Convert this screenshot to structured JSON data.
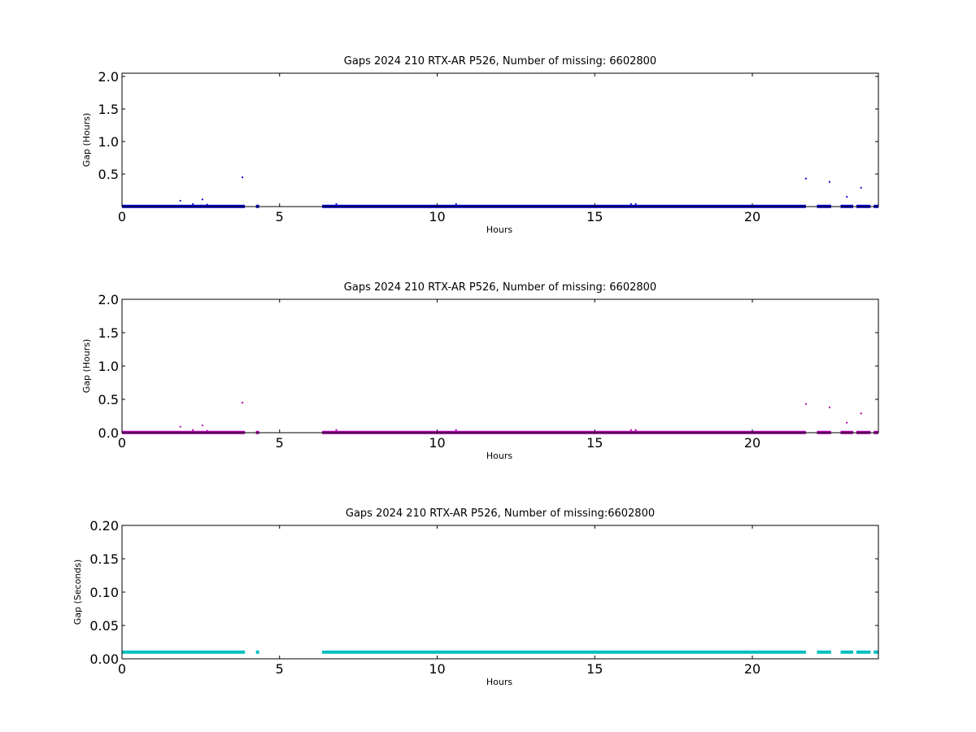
{
  "chart_data": [
    {
      "type": "scatter",
      "title": "Gaps 2024 210 RTX-AR  P526, Number of missing: 6602800",
      "xlabel": "Hours",
      "ylabel": "Gap (Hours)",
      "xlim": [
        0,
        24
      ],
      "ylim": [
        0,
        2.05
      ],
      "xticks": [
        "0",
        "5",
        "10",
        "15",
        "20"
      ],
      "yticks": [
        "0.5",
        "1.0",
        "1.5",
        "2.0"
      ],
      "ytick_values": [
        0.5,
        1.0,
        1.5,
        2.0
      ],
      "color": "#0000cc",
      "baseline": 0.003,
      "segments": [
        [
          0.0,
          3.9
        ],
        [
          4.25,
          4.35
        ],
        [
          6.35,
          21.7
        ],
        [
          22.05,
          22.5
        ],
        [
          22.8,
          23.2
        ],
        [
          23.3,
          23.75
        ],
        [
          23.85,
          24.0
        ]
      ],
      "outliers": [
        [
          1.85,
          0.09
        ],
        [
          2.25,
          0.04
        ],
        [
          2.55,
          0.11
        ],
        [
          2.7,
          0.03
        ],
        [
          3.82,
          0.45
        ],
        [
          6.8,
          0.04
        ],
        [
          10.6,
          0.04
        ],
        [
          16.15,
          0.04
        ],
        [
          16.3,
          0.04
        ],
        [
          21.7,
          0.43
        ],
        [
          22.45,
          0.38
        ],
        [
          23.0,
          0.15
        ],
        [
          23.45,
          0.29
        ]
      ]
    },
    {
      "type": "scatter",
      "title": "Gaps 2024 210 RTX-AR  P526, Number of missing: 6602800",
      "xlabel": "Hours",
      "ylabel": "Gap (Hours)",
      "xlim": [
        0,
        24
      ],
      "ylim": [
        0,
        2.0
      ],
      "xticks": [
        "0",
        "5",
        "10",
        "15",
        "20"
      ],
      "yticks": [
        "0.0",
        "0.5",
        "1.0",
        "1.5",
        "2.0"
      ],
      "ytick_values": [
        0.0,
        0.5,
        1.0,
        1.5,
        2.0
      ],
      "color": "#aa00aa",
      "baseline": 0.003,
      "segments": [
        [
          0.0,
          3.9
        ],
        [
          4.25,
          4.35
        ],
        [
          6.35,
          21.7
        ],
        [
          22.05,
          22.5
        ],
        [
          22.8,
          23.2
        ],
        [
          23.3,
          23.75
        ],
        [
          23.85,
          24.0
        ]
      ],
      "outliers": [
        [
          1.85,
          0.09
        ],
        [
          2.25,
          0.04
        ],
        [
          2.55,
          0.11
        ],
        [
          2.7,
          0.03
        ],
        [
          3.82,
          0.45
        ],
        [
          6.8,
          0.04
        ],
        [
          10.6,
          0.04
        ],
        [
          16.15,
          0.04
        ],
        [
          16.3,
          0.04
        ],
        [
          21.7,
          0.43
        ],
        [
          22.45,
          0.38
        ],
        [
          23.0,
          0.15
        ],
        [
          23.45,
          0.29
        ]
      ]
    },
    {
      "type": "scatter",
      "title": "Gaps 2024 210 RTX-AR  P526, Number of missing:6602800",
      "xlabel": "Hours",
      "ylabel": "Gap (Seconds)",
      "xlim": [
        0,
        24
      ],
      "ylim": [
        0,
        0.2
      ],
      "xticks": [
        "0",
        "5",
        "10",
        "15",
        "20"
      ],
      "yticks": [
        "0.00",
        "0.05",
        "0.10",
        "0.15",
        "0.20"
      ],
      "ytick_values": [
        0.0,
        0.05,
        0.1,
        0.15,
        0.2
      ],
      "color": "#00bfbf",
      "baseline": 0.01,
      "segments": [
        [
          0.0,
          3.9
        ],
        [
          4.25,
          4.35
        ],
        [
          6.35,
          21.7
        ],
        [
          22.05,
          22.5
        ],
        [
          22.8,
          23.2
        ],
        [
          23.3,
          23.75
        ],
        [
          23.85,
          24.0
        ]
      ],
      "outliers": []
    }
  ]
}
